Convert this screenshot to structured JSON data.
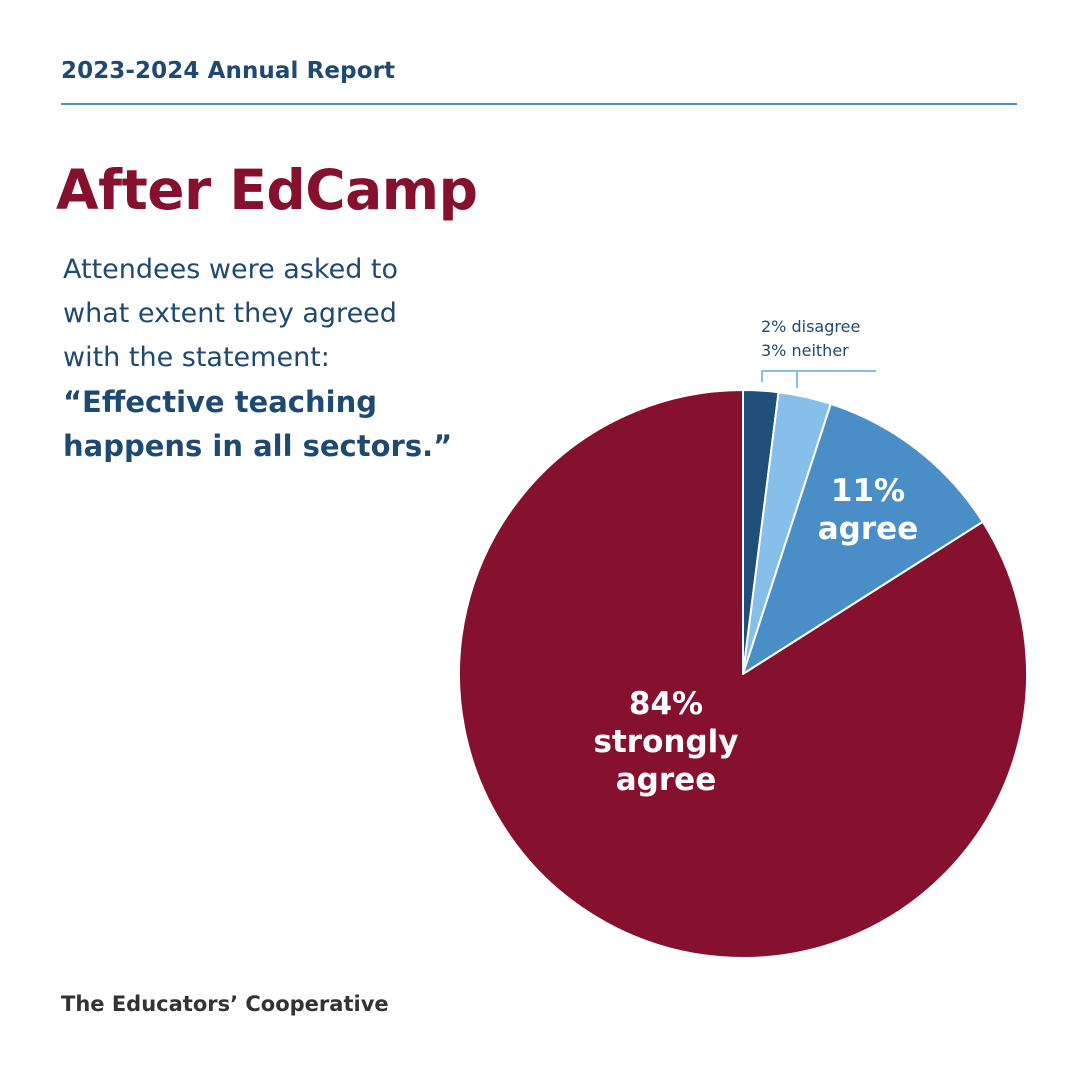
{
  "header": {
    "report_title": "2023-2024 Annual Report"
  },
  "title": "After EdCamp",
  "intro": {
    "line1": "Attendees were asked to",
    "line2": "what extent they agreed",
    "line3": "with the statement:",
    "quote_line1": "“Effective teaching",
    "quote_line2": "happens in all sectors.”"
  },
  "footer": {
    "org_name": "The Educators’ Cooperative"
  },
  "chart_data": {
    "type": "pie",
    "slices": [
      {
        "category": "disagree",
        "value": 2,
        "color": "#1f4e79",
        "label": "2% disagree"
      },
      {
        "category": "neither",
        "value": 3,
        "color": "#85bfea",
        "label": "3% neither"
      },
      {
        "category": "agree",
        "value": 11,
        "color": "#4a8ec8",
        "label_lines": [
          "11%",
          "agree"
        ]
      },
      {
        "category": "strongly agree",
        "value": 84,
        "color": "#86112f",
        "label_lines": [
          "84%",
          "strongly",
          "agree"
        ]
      }
    ],
    "start_angle": "12 o'clock",
    "direction": "clockwise"
  }
}
